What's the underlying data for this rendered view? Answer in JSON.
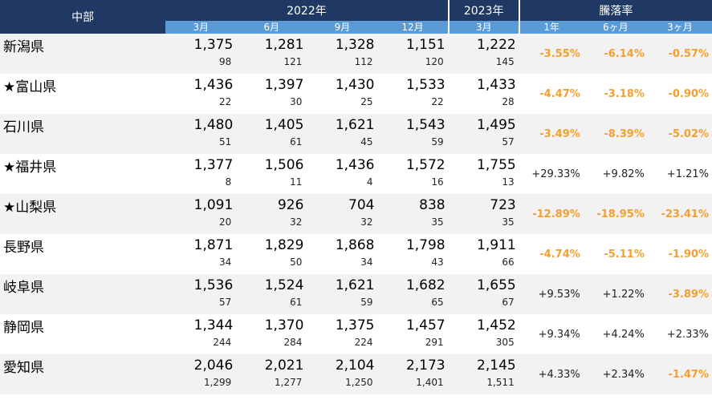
{
  "header": {
    "region": "中部",
    "year2022": "2022年",
    "year2023": "2023年",
    "rate_title": "騰落率",
    "months": [
      "3月",
      "6月",
      "9月",
      "12月",
      "3月"
    ],
    "rate_periods": [
      "1年",
      "6ヶ月",
      "3ヶ月"
    ]
  },
  "rows": [
    {
      "pref": "新潟県",
      "values": [
        "1,375",
        "1,281",
        "1,328",
        "1,151",
        "1,222"
      ],
      "subs": [
        "98",
        "121",
        "112",
        "120",
        "145"
      ],
      "rates": [
        "-3.55%",
        "-6.14%",
        "-0.57%"
      ],
      "neg": [
        true,
        true,
        true
      ]
    },
    {
      "pref": "★富山県",
      "values": [
        "1,436",
        "1,397",
        "1,430",
        "1,533",
        "1,433"
      ],
      "subs": [
        "22",
        "30",
        "25",
        "22",
        "28"
      ],
      "rates": [
        "-4.47%",
        "-3.18%",
        "-0.90%"
      ],
      "neg": [
        true,
        true,
        true
      ]
    },
    {
      "pref": "石川県",
      "values": [
        "1,480",
        "1,405",
        "1,621",
        "1,543",
        "1,495"
      ],
      "subs": [
        "51",
        "61",
        "45",
        "59",
        "57"
      ],
      "rates": [
        "-3.49%",
        "-8.39%",
        "-5.02%"
      ],
      "neg": [
        true,
        true,
        true
      ]
    },
    {
      "pref": "★福井県",
      "values": [
        "1,377",
        "1,506",
        "1,436",
        "1,572",
        "1,755"
      ],
      "subs": [
        "8",
        "11",
        "4",
        "16",
        "13"
      ],
      "rates": [
        "+29.33%",
        "+9.82%",
        "+1.21%"
      ],
      "neg": [
        false,
        false,
        false
      ]
    },
    {
      "pref": "★山梨県",
      "values": [
        "1,091",
        "926",
        "704",
        "838",
        "723"
      ],
      "subs": [
        "20",
        "32",
        "32",
        "35",
        "35"
      ],
      "rates": [
        "-12.89%",
        "-18.95%",
        "-23.41%"
      ],
      "neg": [
        true,
        true,
        true
      ]
    },
    {
      "pref": "長野県",
      "values": [
        "1,871",
        "1,829",
        "1,868",
        "1,798",
        "1,911"
      ],
      "subs": [
        "34",
        "50",
        "34",
        "43",
        "66"
      ],
      "rates": [
        "-4.74%",
        "-5.11%",
        "-1.90%"
      ],
      "neg": [
        true,
        true,
        true
      ]
    },
    {
      "pref": "岐阜県",
      "values": [
        "1,536",
        "1,524",
        "1,621",
        "1,682",
        "1,655"
      ],
      "subs": [
        "57",
        "61",
        "59",
        "65",
        "67"
      ],
      "rates": [
        "+9.53%",
        "+1.22%",
        "-3.89%"
      ],
      "neg": [
        false,
        false,
        true
      ]
    },
    {
      "pref": "静岡県",
      "values": [
        "1,344",
        "1,370",
        "1,375",
        "1,457",
        "1,452"
      ],
      "subs": [
        "244",
        "284",
        "224",
        "291",
        "305"
      ],
      "rates": [
        "+9.34%",
        "+4.24%",
        "+2.33%"
      ],
      "neg": [
        false,
        false,
        false
      ]
    },
    {
      "pref": "愛知県",
      "values": [
        "2,046",
        "2,021",
        "2,104",
        "2,173",
        "2,145"
      ],
      "subs": [
        "1,299",
        "1,277",
        "1,250",
        "1,401",
        "1,511"
      ],
      "rates": [
        "+4.33%",
        "+2.34%",
        "-1.47%"
      ],
      "neg": [
        false,
        false,
        true
      ]
    }
  ]
}
